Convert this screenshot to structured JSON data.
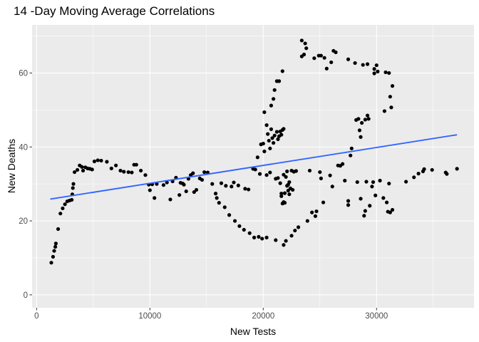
{
  "chart_data": {
    "type": "scatter",
    "title": "14 -Day Moving Average Correlations",
    "xlabel": "New Tests",
    "ylabel": "New Deaths",
    "xlim": [
      -400,
      38600
    ],
    "ylim": [
      -3.5,
      73
    ],
    "x_ticks": [
      0,
      10000,
      20000,
      30000
    ],
    "x_tick_labels": [
      "0",
      "10000",
      "20000",
      "30000"
    ],
    "y_ticks": [
      0,
      20,
      40,
      60
    ],
    "y_tick_labels": [
      "0",
      "20",
      "40",
      "60"
    ],
    "grid": true,
    "legend": "none",
    "points": [
      [
        1300,
        8.7
      ],
      [
        1450,
        10.3
      ],
      [
        1550,
        11.9
      ],
      [
        1650,
        13.0
      ],
      [
        1700,
        13.9
      ],
      [
        1900,
        17.8
      ],
      [
        2100,
        22.0
      ],
      [
        2300,
        23.4
      ],
      [
        2500,
        24.5
      ],
      [
        2700,
        25.3
      ],
      [
        2900,
        25.5
      ],
      [
        3100,
        25.7
      ],
      [
        3150,
        27.2
      ],
      [
        3200,
        28.9
      ],
      [
        3250,
        30.0
      ],
      [
        3350,
        33.2
      ],
      [
        3600,
        33.8
      ],
      [
        3800,
        35.0
      ],
      [
        4000,
        34.6
      ],
      [
        4100,
        33.6
      ],
      [
        4300,
        34.5
      ],
      [
        4500,
        34.2
      ],
      [
        4700,
        34.1
      ],
      [
        4900,
        33.9
      ],
      [
        5100,
        36.1
      ],
      [
        5400,
        36.4
      ],
      [
        5700,
        36.3
      ],
      [
        6200,
        36.0
      ],
      [
        6600,
        34.2
      ],
      [
        7000,
        35.0
      ],
      [
        7400,
        33.6
      ],
      [
        7700,
        33.3
      ],
      [
        8100,
        33.2
      ],
      [
        8400,
        33.1
      ],
      [
        8600,
        35.2
      ],
      [
        8800,
        35.2
      ],
      [
        9200,
        33.6
      ],
      [
        9600,
        32.4
      ],
      [
        9900,
        29.8
      ],
      [
        10000,
        28.3
      ],
      [
        10200,
        29.9
      ],
      [
        10400,
        26.2
      ],
      [
        10600,
        30.0
      ],
      [
        11200,
        29.7
      ],
      [
        11500,
        30.4
      ],
      [
        11800,
        25.8
      ],
      [
        12000,
        30.7
      ],
      [
        12300,
        31.7
      ],
      [
        12600,
        27.0
      ],
      [
        12700,
        30.3
      ],
      [
        12900,
        30.1
      ],
      [
        13000,
        29.8
      ],
      [
        13200,
        28.0
      ],
      [
        13400,
        31.4
      ],
      [
        13600,
        32.4
      ],
      [
        13800,
        32.9
      ],
      [
        13900,
        27.8
      ],
      [
        14100,
        28.4
      ],
      [
        14400,
        31.5
      ],
      [
        14600,
        31.1
      ],
      [
        14800,
        33.2
      ],
      [
        15100,
        33.1
      ],
      [
        15500,
        30.0
      ],
      [
        15800,
        27.4
      ],
      [
        15900,
        26.2
      ],
      [
        16100,
        24.9
      ],
      [
        16300,
        30.2
      ],
      [
        16600,
        23.7
      ],
      [
        16700,
        29.5
      ],
      [
        17000,
        21.6
      ],
      [
        17200,
        29.3
      ],
      [
        17400,
        30.4
      ],
      [
        17500,
        20.0
      ],
      [
        17800,
        29.6
      ],
      [
        17900,
        18.6
      ],
      [
        18300,
        17.6
      ],
      [
        18400,
        28.7
      ],
      [
        18700,
        28.5
      ],
      [
        18800,
        16.7
      ],
      [
        19100,
        34.1
      ],
      [
        19200,
        15.5
      ],
      [
        19300,
        33.9
      ],
      [
        19500,
        37.2
      ],
      [
        19600,
        15.7
      ],
      [
        19700,
        32.7
      ],
      [
        19800,
        40.7
      ],
      [
        19900,
        15.2
      ],
      [
        20000,
        40.9
      ],
      [
        20100,
        49.4
      ],
      [
        20100,
        38.8
      ],
      [
        20300,
        32.4
      ],
      [
        20300,
        15.5
      ],
      [
        20300,
        45.9
      ],
      [
        20400,
        43.5
      ],
      [
        20500,
        41.7
      ],
      [
        20600,
        33.1
      ],
      [
        20600,
        39.6
      ],
      [
        20700,
        44.8
      ],
      [
        20700,
        51.2
      ],
      [
        20800,
        42.4
      ],
      [
        20900,
        53.0
      ],
      [
        20900,
        41.1
      ],
      [
        21000,
        55.4
      ],
      [
        21000,
        43.1
      ],
      [
        21100,
        14.8
      ],
      [
        21100,
        31.4
      ],
      [
        21200,
        44.1
      ],
      [
        21200,
        57.8
      ],
      [
        21300,
        42.1
      ],
      [
        21300,
        31.6
      ],
      [
        21400,
        57.8
      ],
      [
        21400,
        42.9
      ],
      [
        21500,
        30.2
      ],
      [
        21500,
        44.2
      ],
      [
        21600,
        43.3
      ],
      [
        21600,
        27.4
      ],
      [
        21600,
        26.7
      ],
      [
        21700,
        44.6
      ],
      [
        21700,
        24.7
      ],
      [
        21700,
        60.5
      ],
      [
        21800,
        44.9
      ],
      [
        21800,
        32.5
      ],
      [
        21800,
        25.1
      ],
      [
        21800,
        13.5
      ],
      [
        21900,
        27.5
      ],
      [
        21900,
        24.9
      ],
      [
        22000,
        31.9
      ],
      [
        22000,
        14.6
      ],
      [
        22100,
        33.4
      ],
      [
        22100,
        29.5
      ],
      [
        22200,
        29.8
      ],
      [
        22200,
        28.2
      ],
      [
        22300,
        30.5
      ],
      [
        22300,
        27.2
      ],
      [
        22400,
        28.8
      ],
      [
        22500,
        33.6
      ],
      [
        22500,
        16.0
      ],
      [
        22600,
        28.4
      ],
      [
        22700,
        33.3
      ],
      [
        22800,
        17.4
      ],
      [
        22900,
        33.5
      ],
      [
        23100,
        18.3
      ],
      [
        23400,
        64.5
      ],
      [
        23400,
        68.8
      ],
      [
        23600,
        65.0
      ],
      [
        23700,
        68.0
      ],
      [
        23800,
        66.7
      ],
      [
        23900,
        20.0
      ],
      [
        24100,
        33.6
      ],
      [
        24300,
        22.3
      ],
      [
        24500,
        64.0
      ],
      [
        24600,
        21.3
      ],
      [
        24700,
        22.6
      ],
      [
        24900,
        64.7
      ],
      [
        25000,
        33.2
      ],
      [
        25100,
        64.7
      ],
      [
        25100,
        31.5
      ],
      [
        25300,
        25.0
      ],
      [
        25400,
        64.1
      ],
      [
        25600,
        61.2
      ],
      [
        25900,
        32.3
      ],
      [
        26000,
        62.9
      ],
      [
        26100,
        29.3
      ],
      [
        26200,
        66.0
      ],
      [
        26400,
        65.6
      ],
      [
        26600,
        35.0
      ],
      [
        26800,
        34.9
      ],
      [
        27000,
        35.4
      ],
      [
        27200,
        30.9
      ],
      [
        27500,
        63.7
      ],
      [
        27500,
        24.3
      ],
      [
        27500,
        25.4
      ],
      [
        27700,
        37.7
      ],
      [
        27800,
        39.6
      ],
      [
        28100,
        62.7
      ],
      [
        28200,
        47.3
      ],
      [
        28300,
        30.5
      ],
      [
        28400,
        47.6
      ],
      [
        28500,
        44.5
      ],
      [
        28600,
        26.0
      ],
      [
        28600,
        42.7
      ],
      [
        28700,
        46.5
      ],
      [
        28800,
        62.2
      ],
      [
        28900,
        21.4
      ],
      [
        29000,
        22.7
      ],
      [
        29000,
        47.4
      ],
      [
        29100,
        30.6
      ],
      [
        29200,
        48.5
      ],
      [
        29200,
        62.4
      ],
      [
        29300,
        47.6
      ],
      [
        29400,
        24.1
      ],
      [
        29600,
        29.3
      ],
      [
        29700,
        30.5
      ],
      [
        29800,
        61.1
      ],
      [
        29800,
        59.9
      ],
      [
        29900,
        26.9
      ],
      [
        30000,
        62.1
      ],
      [
        30100,
        60.4
      ],
      [
        30300,
        30.9
      ],
      [
        30600,
        26.2
      ],
      [
        30700,
        49.7
      ],
      [
        30800,
        60.2
      ],
      [
        30900,
        25.0
      ],
      [
        31000,
        22.5
      ],
      [
        31100,
        60.0
      ],
      [
        31100,
        30.1
      ],
      [
        31200,
        53.6
      ],
      [
        31200,
        22.3
      ],
      [
        31300,
        50.7
      ],
      [
        31400,
        56.5
      ],
      [
        31400,
        23.0
      ],
      [
        32600,
        30.6
      ],
      [
        33300,
        31.8
      ],
      [
        33700,
        32.8
      ],
      [
        34100,
        33.4
      ],
      [
        34200,
        34.0
      ],
      [
        34900,
        33.8
      ],
      [
        36100,
        33.1
      ],
      [
        36200,
        32.7
      ],
      [
        37100,
        34.1
      ]
    ],
    "trend_line": {
      "x": [
        1200,
        37100
      ],
      "y": [
        25.9,
        43.3
      ]
    }
  }
}
